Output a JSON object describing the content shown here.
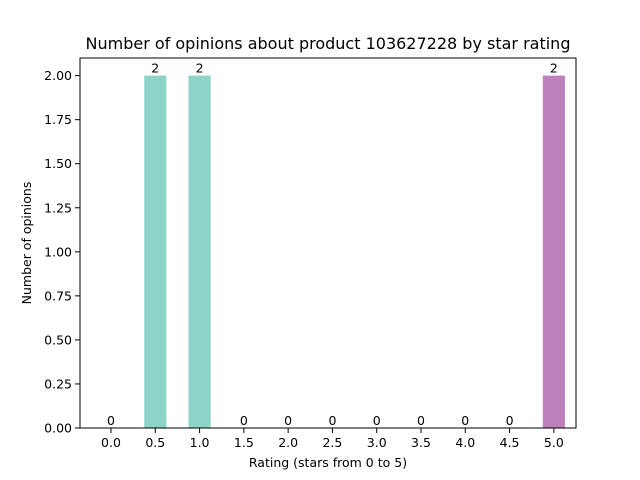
{
  "chart_data": {
    "type": "bar",
    "title": "Number of opinions about product 103627228 by star rating",
    "xlabel": "Rating (stars from 0 to 5)",
    "ylabel": "Number of opinions",
    "categories": [
      "0.0",
      "0.5",
      "1.0",
      "1.5",
      "2.0",
      "2.5",
      "3.0",
      "3.5",
      "4.0",
      "4.5",
      "5.0"
    ],
    "values": [
      0,
      2,
      2,
      0,
      0,
      0,
      0,
      0,
      0,
      0,
      2
    ],
    "bar_colors": [
      "#8dd3c7",
      "#8dd3c7",
      "#8dd3c7",
      "#8dd3c7",
      "#8dd3c7",
      "#8dd3c7",
      "#8dd3c7",
      "#8dd3c7",
      "#8dd3c7",
      "#8dd3c7",
      "#bc80bd"
    ],
    "data_labels": [
      "0",
      "2",
      "2",
      "0",
      "0",
      "0",
      "0",
      "0",
      "0",
      "0",
      "2"
    ],
    "y_ticks": [
      "0.00",
      "0.25",
      "0.50",
      "0.75",
      "1.00",
      "1.25",
      "1.50",
      "1.75",
      "2.00"
    ],
    "ylim": [
      0,
      2.1
    ],
    "xlim": [
      -0.35,
      5.25
    ],
    "grid": false,
    "legend": "none"
  }
}
